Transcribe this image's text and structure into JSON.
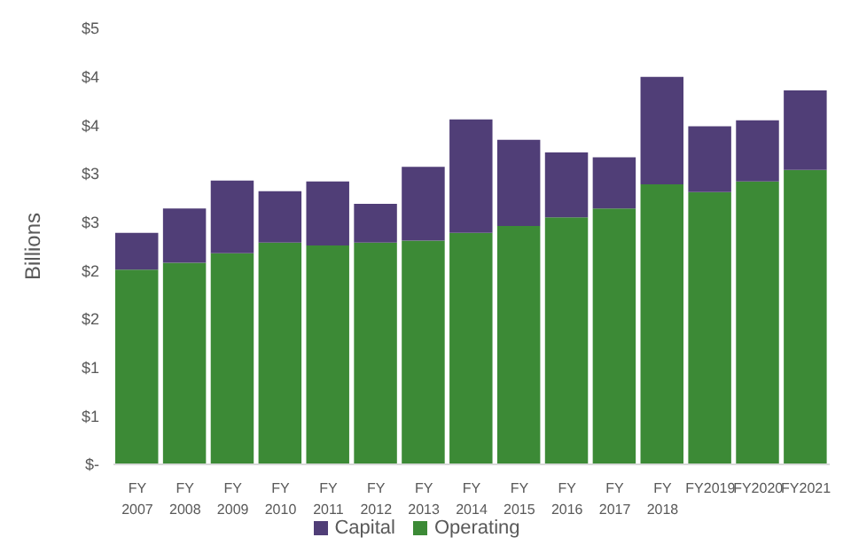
{
  "chart_data": {
    "type": "bar",
    "stacked": true,
    "ylabel": "Billions",
    "categories": [
      "FY 2007",
      "FY 2008",
      "FY 2009",
      "FY 2010",
      "FY 2011",
      "FY 2012",
      "FY 2013",
      "FY 2014",
      "FY 2015",
      "FY 2016",
      "FY 2017",
      "FY 2018",
      "FY2019",
      "FY2020",
      "FY2021"
    ],
    "series": [
      {
        "name": "Operating",
        "color": "#3c8a36",
        "values": [
          2.01,
          2.08,
          2.18,
          2.29,
          2.26,
          2.29,
          2.31,
          2.39,
          2.46,
          2.55,
          2.64,
          2.89,
          2.81,
          2.92,
          3.04
        ]
      },
      {
        "name": "Capital",
        "color": "#503e77",
        "values": [
          0.38,
          0.56,
          0.75,
          0.53,
          0.66,
          0.4,
          0.76,
          1.17,
          0.89,
          0.67,
          0.53,
          1.11,
          0.68,
          0.63,
          0.82
        ]
      }
    ],
    "ylim": [
      0,
      4.5
    ],
    "yticks": [
      {
        "value": 0,
        "label": "$-"
      },
      {
        "value": 0.5,
        "label": "$1"
      },
      {
        "value": 1,
        "label": "$1"
      },
      {
        "value": 1.5,
        "label": "$2"
      },
      {
        "value": 2,
        "label": "$2"
      },
      {
        "value": 2.5,
        "label": "$3"
      },
      {
        "value": 3,
        "label": "$3"
      },
      {
        "value": 3.5,
        "label": "$4"
      },
      {
        "value": 4,
        "label": "$4"
      },
      {
        "value": 4.5,
        "label": "$5"
      }
    ],
    "grid": false,
    "legend": "bottom"
  }
}
